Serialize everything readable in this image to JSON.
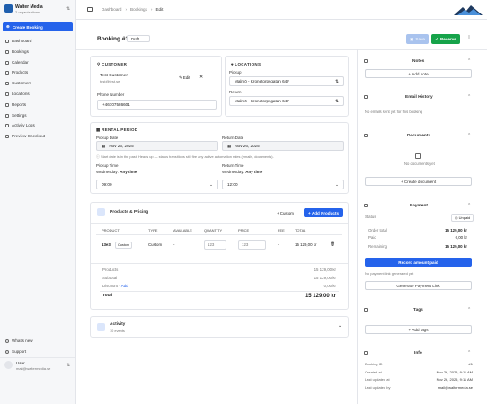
{
  "sidebar": {
    "org_name": "Walter Media",
    "org_sub": "2 organizations",
    "create_button": "Create Booking",
    "nav": [
      "Dashboard",
      "Bookings",
      "Calendar",
      "Products",
      "Customers",
      "Locations",
      "Reports",
      "Settings",
      "Activity Logs",
      "Preview Checkout"
    ],
    "footer_nav": [
      "What's new",
      "Support"
    ],
    "user_name": "User",
    "user_email": "mail@waltermedia.se"
  },
  "breadcrumb": [
    "Dashboard",
    "Bookings",
    "Edit"
  ],
  "header": {
    "title": "Booking #1",
    "status": "Draft",
    "save": "Save",
    "reserve": "Reserve"
  },
  "customer": {
    "heading": "CUSTOMER",
    "name": "Test Customer",
    "email": "test@test.se",
    "edit": "Edit",
    "phone_label": "Phone Number",
    "phone": "+46707586601"
  },
  "locations": {
    "heading": "LOCATIONS",
    "pickup_label": "Pickup",
    "pickup": "Malmö - Kronetorpsgatan 64F",
    "return_label": "Return",
    "return": "Malmö - Kronetorpsgatan 64F"
  },
  "rental": {
    "heading": "RENTAL PERIOD",
    "pickup_date_label": "Pickup Date",
    "pickup_date": "Nov 26, 2025",
    "return_date_label": "Return Date",
    "return_date": "Nov 26, 2025",
    "note": "Start date is in the past. Heads up — status transitions still fire any active automation rules (emails, documents).",
    "pickup_time_label": "Pickup Time",
    "pickup_day": "Wednesday:",
    "pickup_window": "Any time",
    "pickup_time": "09:00",
    "return_time_label": "Return Time",
    "return_day": "Wednesday:",
    "return_window": "Any time",
    "return_time": "12:00"
  },
  "products": {
    "heading": "Products & Pricing",
    "custom_button": "Custom",
    "add_button": "Add Products",
    "columns": [
      "PRODUCT",
      "TYPE",
      "AVAILABLE",
      "QUANTITY",
      "PRICE",
      "FEE",
      "TOTAL"
    ],
    "rows": [
      {
        "product": "13e3",
        "badge": "Custom",
        "type": "Custom",
        "available": "-",
        "quantity": "123",
        "price": "123",
        "fee": "-",
        "total": "15 129,00 kr"
      }
    ],
    "summary": {
      "products_label": "Products",
      "products": "15 129,00 kr",
      "subtotal_label": "Subtotal",
      "subtotal": "15 129,00 kr",
      "discount_label": "Discount",
      "discount_sep": "-",
      "discount_add": "Add",
      "discount": "0,00 kr",
      "total_label": "Total",
      "total": "15 129,00 kr"
    }
  },
  "activity": {
    "heading": "Activity",
    "count": "10 events"
  },
  "panel": {
    "notes": {
      "heading": "Notes",
      "button": "Add note"
    },
    "email": {
      "heading": "Email History",
      "empty": "No emails sent yet for this booking"
    },
    "documents": {
      "heading": "Documents",
      "empty": "No documents yet",
      "button": "Create document"
    },
    "payment": {
      "heading": "Payment",
      "status_label": "Status",
      "status": "Unpaid",
      "order_total_label": "Order total",
      "order_total": "15 129,00 kr",
      "paid_label": "Paid",
      "paid": "0,00 kr",
      "remaining_label": "Remaining",
      "remaining": "15 129,00 kr",
      "record_button": "Record amount paid",
      "link_note": "No payment link generated yet",
      "link_button": "Generate Payment Link"
    },
    "tags": {
      "heading": "Tags",
      "button": "Add tags"
    },
    "info": {
      "heading": "Info",
      "rows": [
        [
          "Booking ID",
          "#1"
        ],
        [
          "Created at",
          "Nov 26, 2025, 9:11 AM"
        ],
        [
          "Last updated at",
          "Nov 26, 2025, 9:11 AM"
        ],
        [
          "Last updated by",
          "mail@waltermedia.se"
        ]
      ]
    }
  }
}
